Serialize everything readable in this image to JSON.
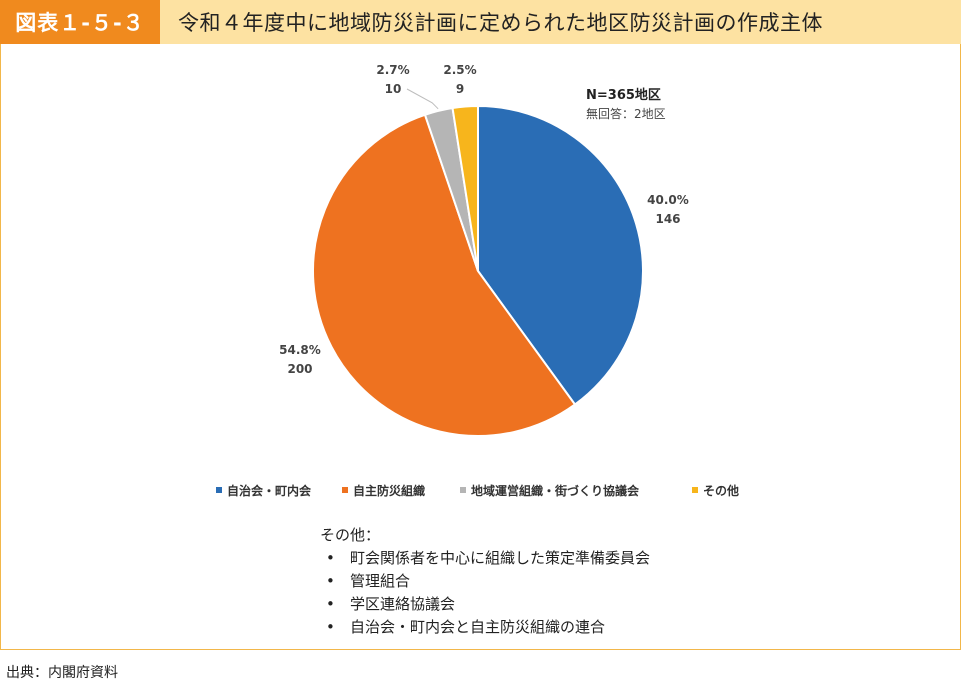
{
  "header": {
    "badge": "図表１-５-３",
    "title": "令和４年度中に地域防災計画に定められた地区防災計画の作成主体"
  },
  "chart_data": {
    "type": "pie",
    "n_label": "N=365地区",
    "no_answer_label": "無回答：2地区",
    "slices": [
      {
        "name": "自治会・町内会",
        "percent_label": "40.0%",
        "count_label": "146",
        "value": 146,
        "color": "#2a6db5"
      },
      {
        "name": "自主防災組織",
        "percent_label": "54.8%",
        "count_label": "200",
        "value": 200,
        "color": "#ee7220"
      },
      {
        "name": "地域運営組織・街づくり協議会",
        "percent_label": "2.7%",
        "count_label": "10",
        "value": 10,
        "color": "#b5b5b5"
      },
      {
        "name": "その他",
        "percent_label": "2.5%",
        "count_label": "9",
        "value": 9,
        "color": "#f7b51c"
      }
    ],
    "legend_position": "bottom"
  },
  "notes": {
    "heading": "その他：",
    "items": [
      "町会関係者を中心に組織した策定準備委員会",
      "管理組合",
      "学区連絡協議会",
      "自治会・町内会と自主防災組織の連合"
    ],
    "bullet": "•"
  },
  "source": "出典：内閣府資料"
}
